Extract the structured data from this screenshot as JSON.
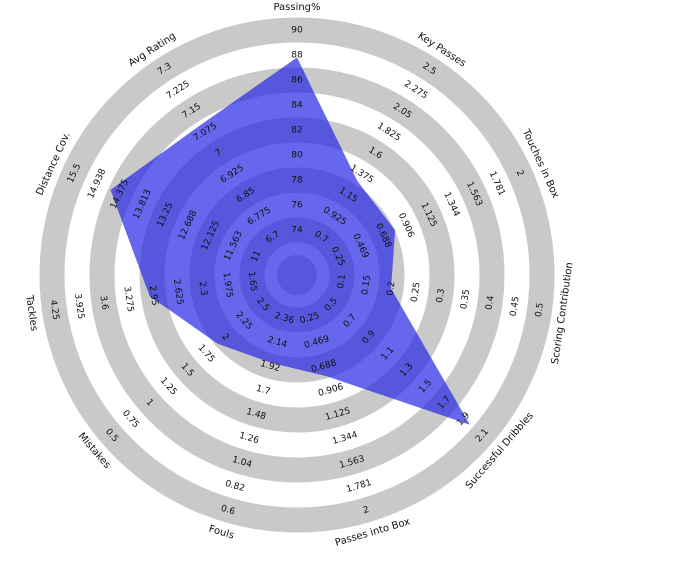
{
  "chart_data": {
    "type": "radar",
    "categories": [
      "Passing%",
      "Key Passes",
      "Touches in Box",
      "Scoring Contribution",
      "Successful Dribbles",
      "Passes into Box",
      "Fouls",
      "Mistakes",
      "Tackles",
      "Distance Cov.",
      "Avg Rating"
    ],
    "values": [
      87.8,
      1.3,
      0.8,
      0.2,
      1.97,
      0.78,
      1.95,
      1.9,
      3.0,
      14.6,
      7.1
    ],
    "color": "#2626e6",
    "ranges": [
      [
        72,
        90
      ],
      [
        0.475,
        2.5
      ],
      [
        0.03125,
        2
      ],
      [
        0.05,
        0.5
      ],
      [
        0.3,
        2.1
      ],
      [
        0.03125,
        2
      ],
      [
        2.58,
        0.6
      ],
      [
        2.75,
        0.5
      ],
      [
        1.325,
        4.25
      ],
      [
        10.4375,
        15.5
      ],
      [
        6.625,
        7.3
      ]
    ],
    "ticks": [
      [
        74,
        76,
        78,
        80,
        82,
        84,
        86,
        88,
        90
      ],
      [
        0.7,
        0.925,
        1.15,
        1.375,
        1.6,
        1.825,
        2.05,
        2.275,
        2.5
      ],
      [
        0.25,
        0.469,
        0.688,
        0.906,
        1.125,
        1.344,
        1.563,
        1.781,
        2
      ],
      [
        0.1,
        0.15,
        0.2,
        0.25,
        0.3,
        0.35,
        0.4,
        0.45,
        0.5
      ],
      [
        0.5,
        0.7,
        0.9,
        1.1,
        1.3,
        1.5,
        1.7,
        1.9,
        2.1
      ],
      [
        0.25,
        0.469,
        0.688,
        0.906,
        1.125,
        1.344,
        1.563,
        1.781,
        2
      ],
      [
        2.36,
        2.14,
        1.92,
        1.7,
        1.48,
        1.26,
        1.04,
        0.82,
        0.6
      ],
      [
        2.5,
        2.25,
        2,
        1.75,
        1.5,
        1.25,
        1,
        0.75,
        0.5
      ],
      [
        1.65,
        1.975,
        2.3,
        2.625,
        2.95,
        3.275,
        3.6,
        3.925,
        4.25
      ],
      [
        11,
        11.563,
        12.125,
        12.688,
        13.25,
        13.813,
        14.375,
        14.938,
        15.5
      ],
      [
        6.7,
        6.775,
        6.85,
        6.925,
        7,
        7.075,
        7.15,
        7.225,
        7.3
      ]
    ]
  }
}
